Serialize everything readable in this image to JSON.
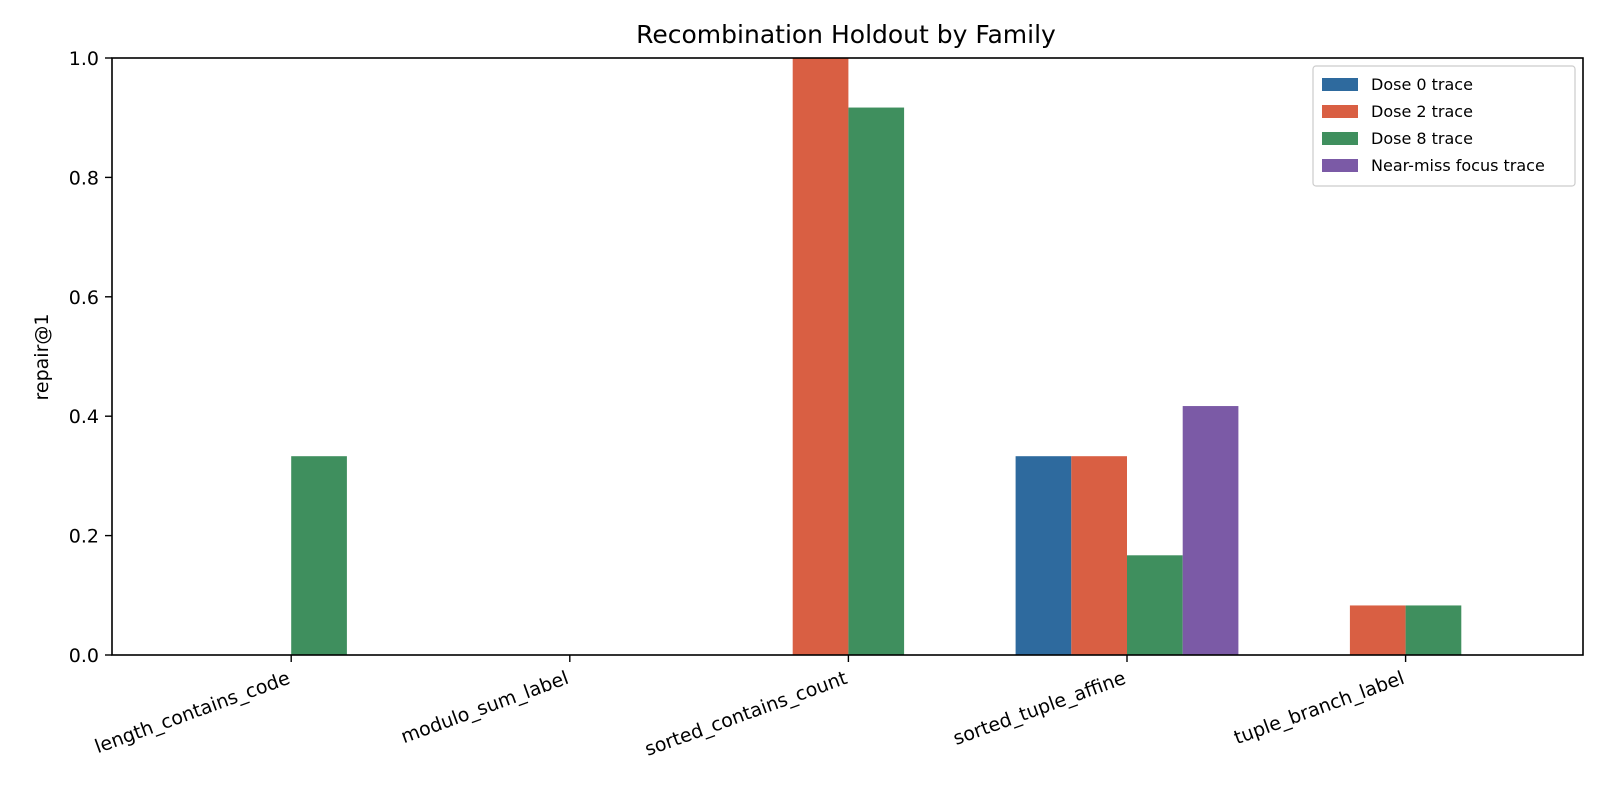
{
  "chart_data": {
    "type": "bar",
    "title": "Recombination Holdout by Family",
    "xlabel": "",
    "ylabel": "repair@1",
    "ylim": [
      0,
      1.0
    ],
    "yticks": [
      "0.0",
      "0.2",
      "0.4",
      "0.6",
      "0.8",
      "1.0"
    ],
    "categories": [
      "length_contains_code",
      "modulo_sum_label",
      "sorted_contains_count",
      "sorted_tuple_affine",
      "tuple_branch_label"
    ],
    "series": [
      {
        "name": "Dose 0 trace",
        "color": "#2e6a9e",
        "values": [
          0,
          0,
          0,
          0.333,
          0
        ]
      },
      {
        "name": "Dose 2 trace",
        "color": "#d95f43",
        "values": [
          0,
          0,
          1.0,
          0.333,
          0.083
        ]
      },
      {
        "name": "Dose 8 trace",
        "color": "#3f8f5e",
        "values": [
          0.333,
          0,
          0.917,
          0.167,
          0.083
        ]
      },
      {
        "name": "Near-miss focus trace",
        "color": "#7b5aa6",
        "values": [
          0,
          0,
          0,
          0.417,
          0
        ]
      }
    ],
    "legend_position": "top-right",
    "grid": false
  }
}
